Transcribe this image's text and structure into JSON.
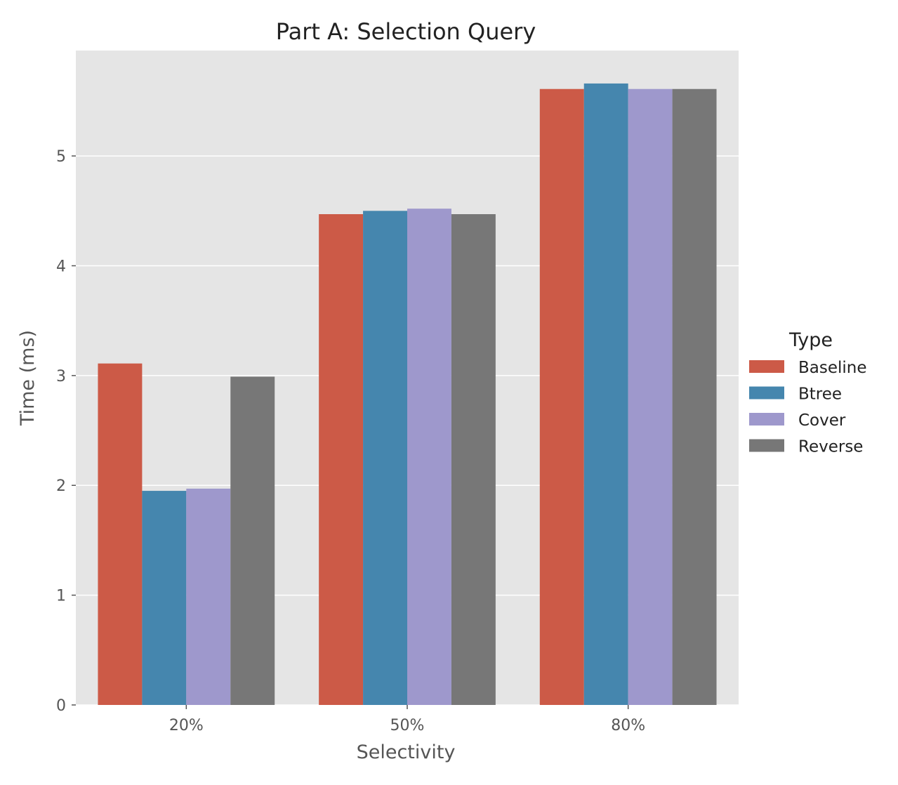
{
  "chart_data": {
    "type": "bar",
    "title": "Part A: Selection Query",
    "xlabel": "Selectivity",
    "ylabel": "Time (ms)",
    "categories": [
      "20%",
      "50%",
      "80%"
    ],
    "ylim": [
      0,
      5.96
    ],
    "yticks": [
      0,
      1,
      2,
      3,
      4,
      5
    ],
    "grid": true,
    "legend": {
      "title": "Type",
      "placement": "right"
    },
    "series": [
      {
        "name": "Baseline",
        "color": "#cc5a47",
        "values": [
          3.11,
          4.47,
          5.61
        ]
      },
      {
        "name": "Btree",
        "color": "#4586ae",
        "values": [
          1.95,
          4.5,
          5.66
        ]
      },
      {
        "name": "Cover",
        "color": "#9e98cc",
        "values": [
          1.97,
          4.52,
          5.61
        ]
      },
      {
        "name": "Reverse",
        "color": "#777777",
        "values": [
          2.99,
          4.47,
          5.61
        ]
      }
    ]
  }
}
